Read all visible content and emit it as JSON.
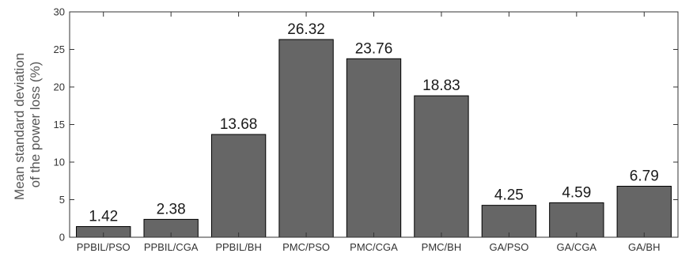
{
  "chart_data": {
    "type": "bar",
    "categories": [
      "PPBIL/PSO",
      "PPBIL/CGA",
      "PPBIL/BH",
      "PMC/PSO",
      "PMC/CGA",
      "PMC/BH",
      "GA/PSO",
      "GA/CGA",
      "GA/BH"
    ],
    "values": [
      1.42,
      2.38,
      13.68,
      26.32,
      23.76,
      18.83,
      4.25,
      4.59,
      6.79
    ],
    "data_labels": [
      "1.42",
      "2.38",
      "13.68",
      "26.32",
      "23.76",
      "18.83",
      "4.25",
      "4.59",
      "6.79"
    ],
    "ylabel_line1": "Mean standard deviation",
    "ylabel_line2": "of the power loss (%)",
    "xlabel": "",
    "ylim": [
      0,
      30
    ],
    "yticks": [
      0,
      5,
      10,
      15,
      20,
      25,
      30
    ],
    "grid": false,
    "bar_color": "#666666",
    "bar_edge_color": "#000000"
  }
}
